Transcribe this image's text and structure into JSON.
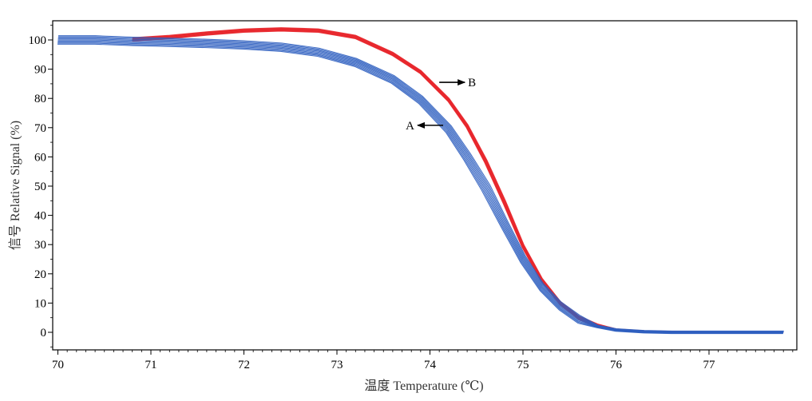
{
  "chart_data": {
    "type": "line",
    "title": "",
    "xlabel": "温度 Temperature (℃)",
    "ylabel": "信号 Relative Signal (%)",
    "xlim": [
      70,
      77.9
    ],
    "ylim": [
      -7,
      107
    ],
    "x_ticks": [
      "70",
      "71",
      "72",
      "73",
      "74",
      "75",
      "76",
      "77"
    ],
    "y_ticks": [
      "0",
      "10",
      "20",
      "30",
      "40",
      "50",
      "60",
      "70",
      "80",
      "90",
      "100"
    ],
    "grid": false,
    "legend": "none",
    "colors": {
      "A": "#2f5fc0",
      "B": "#e8262b"
    },
    "series": [
      {
        "name": "A",
        "color": "#2f5fc0",
        "x": [
          70.0,
          70.4,
          70.8,
          71.2,
          71.6,
          72.0,
          72.4,
          72.8,
          73.2,
          73.6,
          73.9,
          74.2,
          74.4,
          74.6,
          74.8,
          75.0,
          75.2,
          75.4,
          75.6,
          75.8,
          76.0,
          76.3,
          76.6,
          77.0,
          77.4,
          77.8
        ],
        "y": [
          100,
          100,
          99.5,
          99.2,
          98.8,
          98.3,
          97.5,
          95.8,
          92.3,
          86.5,
          79.5,
          69.5,
          60.0,
          49.5,
          37.0,
          25.0,
          15.5,
          9.0,
          4.5,
          2.0,
          0.8,
          0.2,
          0.0,
          0.0,
          0.0,
          0.0
        ]
      },
      {
        "name": "B",
        "color": "#e8262b",
        "x": [
          70.8,
          71.2,
          71.6,
          72.0,
          72.4,
          72.8,
          73.2,
          73.6,
          73.9,
          74.2,
          74.4,
          74.6,
          74.8,
          75.0,
          75.2,
          75.4,
          75.6,
          75.8,
          76.0,
          76.3,
          76.6,
          77.0,
          77.4,
          77.8
        ],
        "y": [
          100.2,
          101.0,
          102.2,
          103.2,
          103.6,
          103.2,
          101.0,
          95.2,
          89.0,
          79.5,
          70.5,
          58.5,
          44.5,
          29.5,
          18.0,
          10.0,
          5.0,
          2.3,
          1.0,
          0.4,
          0.2,
          0.1,
          0.1,
          0.1
        ]
      }
    ],
    "annotations": [
      {
        "text": "B",
        "x": 74.1,
        "y": 85.5,
        "arrow": "right"
      },
      {
        "text": "A",
        "x": 73.85,
        "y": 70.8,
        "arrow": "left"
      }
    ]
  }
}
